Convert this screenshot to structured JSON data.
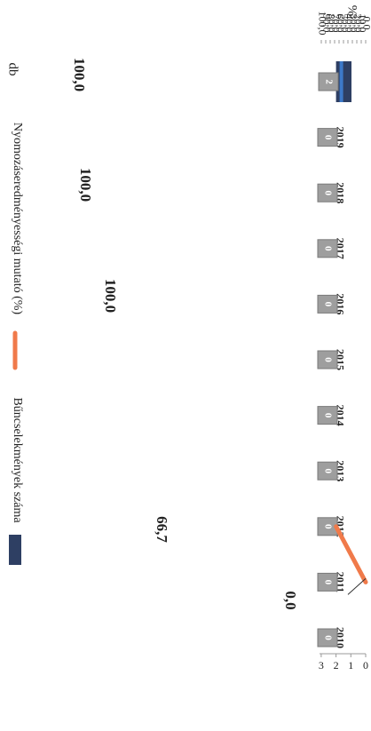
{
  "chart_data": {
    "type": "bar+line",
    "categories": [
      "2010",
      "2011",
      "2012",
      "2013",
      "2014",
      "2015",
      "2016",
      "2017",
      "2018",
      "2019",
      "2020"
    ],
    "series": [
      {
        "name": "Bűncselekmények száma",
        "kind": "bar",
        "axis": "left",
        "color": "#2e3f63",
        "values": [
          0,
          0,
          0,
          0,
          0,
          0,
          0,
          0,
          0,
          0,
          2
        ],
        "data_labels": [
          "0",
          "0",
          "0",
          "0",
          "0",
          "0",
          "0",
          "0",
          "0",
          "0",
          "2"
        ]
      },
      {
        "name": "Nyomozáseredményességi mutató (%)",
        "kind": "line",
        "axis": "right",
        "color": "#f07a4a",
        "points": [
          {
            "x": "2011",
            "y": 0.0,
            "label": "0,0"
          },
          {
            "x": "2012",
            "y": 66.7,
            "label": "66,7"
          }
        ],
        "extra_labels": [
          {
            "x": "2016",
            "label": "100,0"
          },
          {
            "x": "2018",
            "label": "100,0"
          },
          {
            "x": "2020",
            "label": "100,0"
          }
        ]
      }
    ],
    "axes": {
      "left": {
        "unit": "db",
        "ticks": [
          "0",
          "1",
          "2",
          "3"
        ],
        "range": [
          0,
          3
        ]
      },
      "right": {
        "unit": "%",
        "ticks": [
          "0,0",
          "10,0",
          "20,0",
          "30,0",
          "40,0",
          "50,0",
          "60,0",
          "70,0",
          "80,0",
          "90,0",
          "100,0"
        ],
        "range": [
          0,
          100
        ]
      }
    },
    "legend": {
      "placement": "top",
      "items": [
        "Bűncselekmények száma",
        "Nyomozáseredményességi mutató (%)"
      ]
    },
    "orientation": "rotated 90° clockwise"
  }
}
